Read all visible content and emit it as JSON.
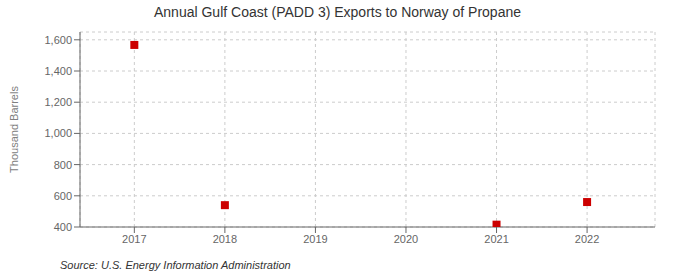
{
  "chart_data": {
    "type": "scatter",
    "title": "Annual Gulf Coast (PADD 3) Exports to Norway of Propane",
    "y_label": "Thousand Barrels",
    "annotations": [
      "Source: U.S. Energy Information Administration"
    ],
    "x": [
      2017,
      2018,
      2021,
      2022
    ],
    "values": [
      1567,
      540,
      415,
      560
    ],
    "color": "#cc0000",
    "marker": "square",
    "xlim": [
      2016.4,
      2022.75
    ],
    "ylim": [
      400,
      1650
    ],
    "xticks": [
      2017,
      2018,
      2019,
      2020,
      2021,
      2022
    ],
    "yticks": [
      400,
      600,
      800,
      {
        "value": 1000,
        "label": "1,000"
      },
      {
        "value": 1200,
        "label": "1,200"
      },
      {
        "value": 1400,
        "label": "1,400"
      },
      {
        "value": 1600,
        "label": "1,600"
      }
    ],
    "grid": true
  }
}
